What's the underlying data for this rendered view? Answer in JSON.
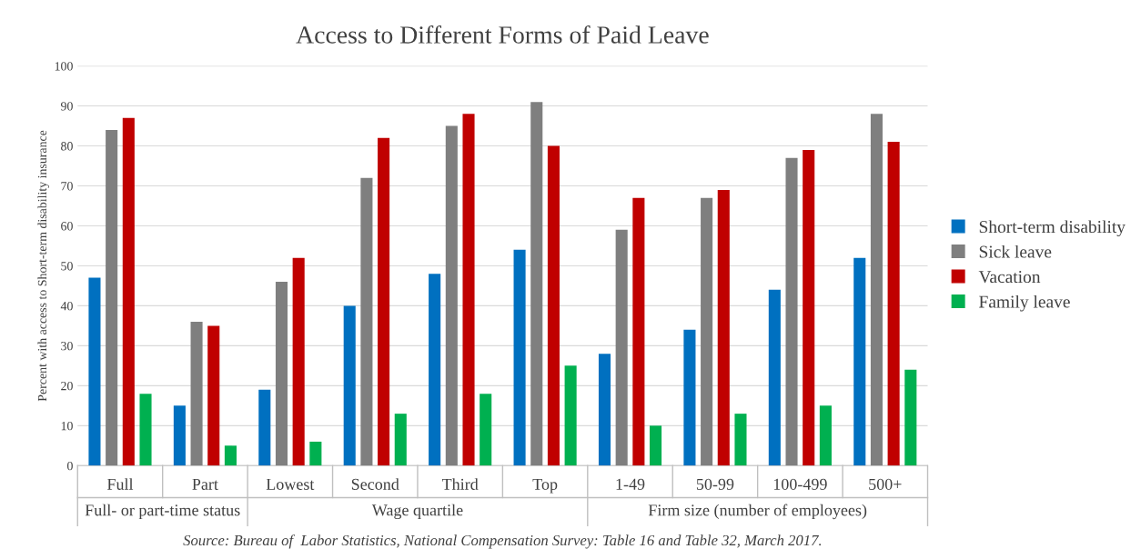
{
  "chart_data": {
    "type": "bar",
    "title": "Access to Different Forms of Paid Leave",
    "ylabel": "Percent with access to Short-term disability insurance",
    "categories": [
      "Full",
      "Part",
      "Lowest",
      "Second",
      "Third",
      "Top",
      "1-49",
      "50-99",
      "100-499",
      "500+"
    ],
    "series": [
      {
        "name": "Short-term disability",
        "color": "#0070c0",
        "values": [
          47,
          15,
          19,
          40,
          48,
          54,
          28,
          34,
          44,
          52
        ]
      },
      {
        "name": "Sick leave",
        "color": "#7f7f7f",
        "values": [
          84,
          36,
          46,
          72,
          85,
          91,
          59,
          67,
          77,
          88
        ]
      },
      {
        "name": "Vacation",
        "color": "#c00000",
        "values": [
          87,
          35,
          52,
          82,
          88,
          80,
          67,
          69,
          79,
          81
        ]
      },
      {
        "name": "Family leave",
        "color": "#00b050",
        "values": [
          18,
          5,
          6,
          13,
          18,
          25,
          10,
          13,
          15,
          24
        ]
      }
    ],
    "ylim": [
      0,
      100
    ],
    "yticks": [
      0,
      10,
      20,
      30,
      40,
      50,
      60,
      70,
      80,
      90,
      100
    ],
    "grid": "y",
    "legend": "right",
    "annotations": [
      "Full- or part-time status",
      "Wage quartile",
      "Firm size (number of employees)",
      "Source: Bureau of  Labor Statistics, National Compensation Survey: Table 16 and Table 32, March 2017."
    ]
  }
}
